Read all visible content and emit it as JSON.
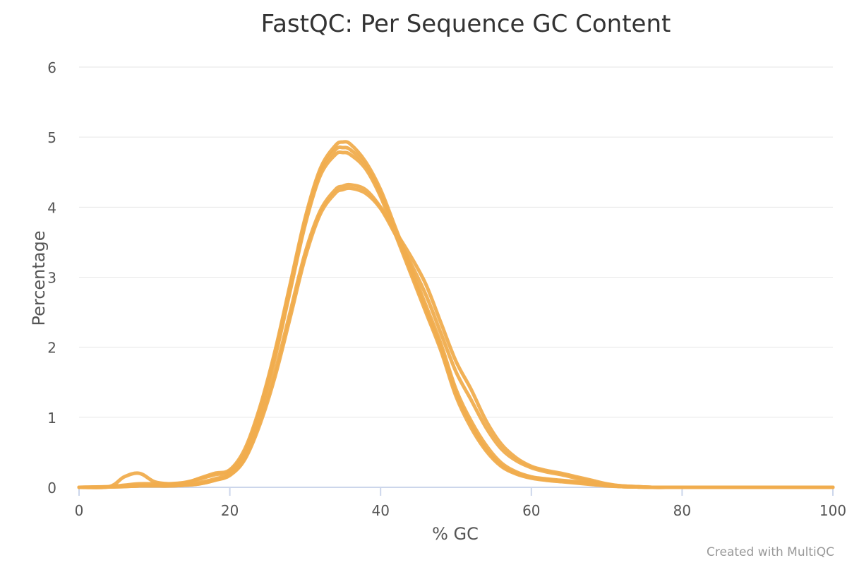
{
  "chart_data": {
    "type": "line",
    "title": "FastQC: Per Sequence GC Content",
    "xlabel": "% GC",
    "ylabel": "Percentage",
    "xlim": [
      0,
      100
    ],
    "ylim": [
      0,
      6
    ],
    "x_ticks": [
      0,
      20,
      40,
      60,
      80,
      100
    ],
    "y_ticks": [
      0,
      1,
      2,
      3,
      4,
      5,
      6
    ],
    "grid": true,
    "line_color": "#f0ad4e",
    "x": [
      0,
      4,
      6,
      8,
      10,
      12,
      14,
      16,
      18,
      20,
      22,
      24,
      26,
      28,
      30,
      32,
      34,
      35,
      36,
      38,
      40,
      42,
      44,
      46,
      48,
      50,
      52,
      54,
      56,
      58,
      60,
      62,
      64,
      66,
      68,
      70,
      72,
      74,
      76,
      80,
      90,
      100
    ],
    "series": [
      {
        "values": [
          0,
          0.01,
          0.15,
          0.2,
          0.08,
          0.05,
          0.06,
          0.13,
          0.2,
          0.25,
          0.55,
          1.15,
          1.95,
          2.9,
          3.85,
          4.55,
          4.88,
          4.93,
          4.9,
          4.65,
          4.25,
          3.7,
          3.15,
          2.6,
          2.05,
          1.4,
          0.95,
          0.6,
          0.35,
          0.22,
          0.15,
          0.12,
          0.1,
          0.08,
          0.06,
          0.03,
          0.01,
          0.005,
          0,
          0,
          0,
          0
        ]
      },
      {
        "values": [
          0,
          0.01,
          0.03,
          0.05,
          0.05,
          0.05,
          0.07,
          0.12,
          0.18,
          0.23,
          0.5,
          1.1,
          1.9,
          2.85,
          3.8,
          4.5,
          4.82,
          4.85,
          4.82,
          4.6,
          4.2,
          3.65,
          3.1,
          2.55,
          2.0,
          1.35,
          0.9,
          0.55,
          0.32,
          0.2,
          0.14,
          0.11,
          0.09,
          0.07,
          0.05,
          0.03,
          0.01,
          0.005,
          0,
          0,
          0,
          0
        ]
      },
      {
        "values": [
          0,
          0.005,
          0.02,
          0.03,
          0.03,
          0.03,
          0.04,
          0.07,
          0.12,
          0.2,
          0.48,
          1.05,
          1.85,
          2.8,
          3.75,
          4.45,
          4.75,
          4.78,
          4.75,
          4.55,
          4.15,
          3.6,
          3.05,
          2.5,
          1.95,
          1.3,
          0.85,
          0.52,
          0.3,
          0.19,
          0.13,
          0.1,
          0.08,
          0.06,
          0.04,
          0.02,
          0.01,
          0.005,
          0,
          0,
          0,
          0
        ]
      },
      {
        "values": [
          0,
          0.005,
          0.01,
          0.02,
          0.02,
          0.02,
          0.03,
          0.05,
          0.1,
          0.18,
          0.42,
          0.95,
          1.65,
          2.5,
          3.35,
          3.95,
          4.25,
          4.3,
          4.32,
          4.25,
          4.0,
          3.65,
          3.3,
          2.9,
          2.35,
          1.8,
          1.4,
          0.95,
          0.62,
          0.42,
          0.3,
          0.24,
          0.2,
          0.15,
          0.1,
          0.05,
          0.02,
          0.01,
          0,
          0,
          0,
          0
        ]
      },
      {
        "values": [
          0,
          0.005,
          0.01,
          0.02,
          0.02,
          0.02,
          0.03,
          0.05,
          0.1,
          0.17,
          0.4,
          0.9,
          1.58,
          2.42,
          3.28,
          3.9,
          4.2,
          4.25,
          4.27,
          4.2,
          3.98,
          3.6,
          3.2,
          2.75,
          2.2,
          1.65,
          1.25,
          0.85,
          0.55,
          0.38,
          0.28,
          0.22,
          0.18,
          0.13,
          0.08,
          0.04,
          0.02,
          0.01,
          0,
          0,
          0,
          0
        ]
      }
    ]
  },
  "footer": {
    "credit": "Created with MultiQC"
  }
}
